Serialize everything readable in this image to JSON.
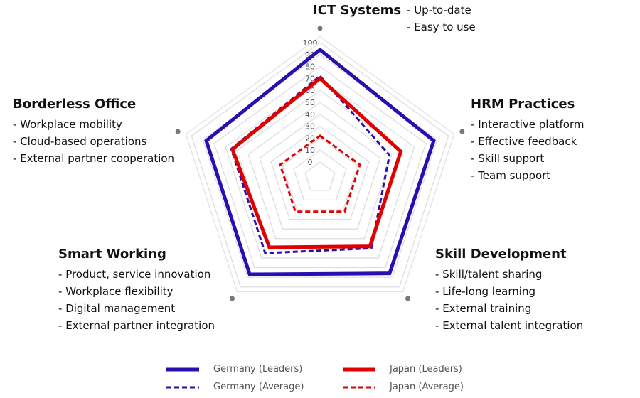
{
  "chart_data": {
    "type": "radar",
    "axes": [
      "ICT Systems",
      "HRM Practices",
      "Skill Development",
      "Smart Working",
      "Borderless Office"
    ],
    "axis_details": {
      "ICT Systems": [
        "Up-to-date",
        "Easy to use"
      ],
      "HRM Practices": [
        "Interactive platform",
        "Effective feedback",
        "Skill support",
        "Team support"
      ],
      "Skill Development": [
        "Skill/talent sharing",
        "Life-long learning",
        "External training",
        "External talent integration"
      ],
      "Smart Working": [
        "Product, service innovation",
        "Workplace flexibility",
        "Digital management",
        "External partner integration"
      ],
      "Borderless Office": [
        "Workplace mobility",
        "Cloud-based operations",
        "External partner cooperation"
      ]
    },
    "rlim": [
      0,
      100
    ],
    "ticks": [
      0,
      10,
      20,
      30,
      40,
      50,
      60,
      70,
      80,
      90,
      100
    ],
    "series": [
      {
        "name": "Germany (Leaders)",
        "color": "#2a0fb0",
        "dash": false,
        "values": [
          94,
          87,
          86,
          87,
          87
        ]
      },
      {
        "name": "Germany (Average)",
        "color": "#2a0fb0",
        "dash": true,
        "values": [
          72,
          48,
          60,
          65,
          65
        ]
      },
      {
        "name": "Japan (Leaders)",
        "color": "#e00000",
        "dash": false,
        "values": [
          70,
          58,
          58,
          59,
          64
        ]
      },
      {
        "name": "Japan (Average)",
        "color": "#e00000",
        "dash": true,
        "values": [
          22,
          22,
          22,
          22,
          22
        ]
      }
    ],
    "grid": true,
    "legend": "bottom"
  }
}
